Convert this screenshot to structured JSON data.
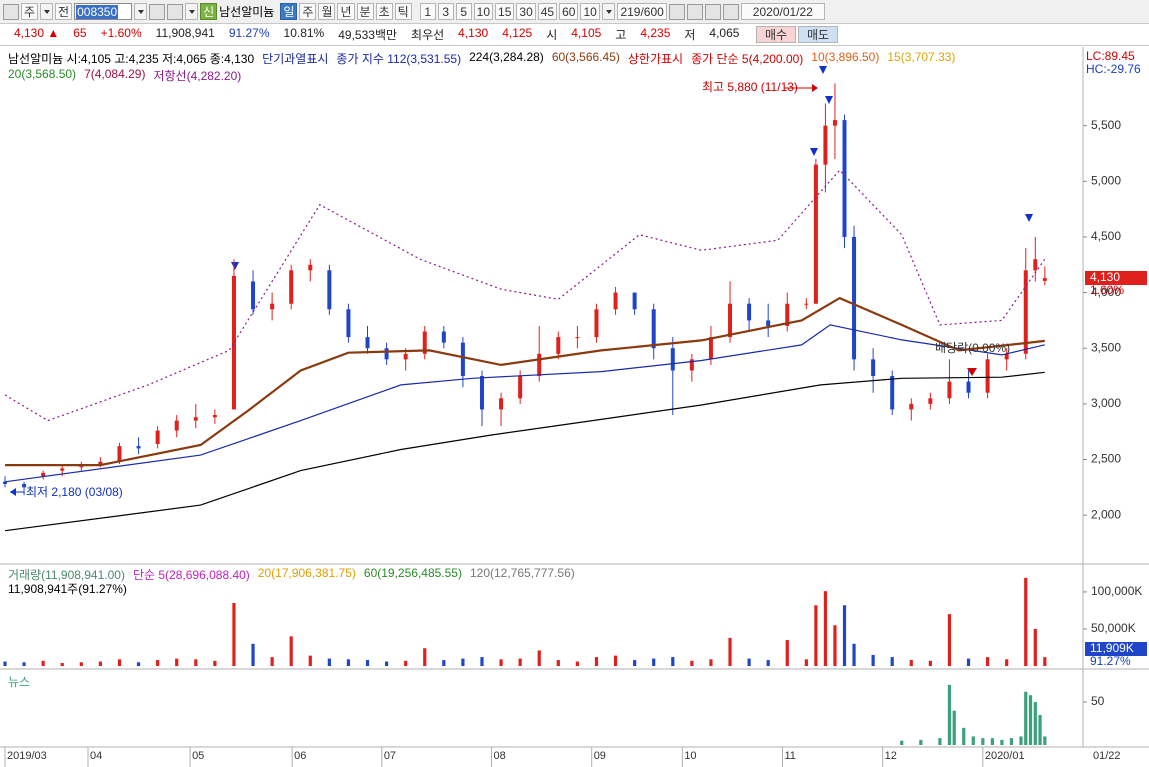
{
  "toolbar": {
    "market": "주",
    "mode": "전",
    "code": "008350",
    "badge": "신",
    "name": "남선알미늄",
    "periods": [
      "일",
      "주",
      "월",
      "년",
      "분",
      "초",
      "틱"
    ],
    "intervals": [
      "1",
      "3",
      "5",
      "10",
      "15",
      "30",
      "45",
      "60"
    ],
    "count_select": "10",
    "count": "219/600",
    "date": "2020/01/22"
  },
  "quote_bar": {
    "items": [
      {
        "text": "4,130 ▲",
        "color": "#d50000"
      },
      {
        "text": "65",
        "color": "#d50000"
      },
      {
        "text": "+1.60%",
        "color": "#d50000"
      },
      {
        "text": "11,908,941",
        "color": "#222222"
      },
      {
        "text": "91.27%",
        "color": "#1a3fbf"
      },
      {
        "text": "10.81%",
        "color": "#222222"
      },
      {
        "text": "49,533백만",
        "color": "#222222"
      },
      {
        "text": "최우선",
        "color": "#222222"
      },
      {
        "text": "4,130",
        "color": "#d50000"
      },
      {
        "text": "4,125",
        "color": "#d50000"
      },
      {
        "text": "시",
        "color": "#222222"
      },
      {
        "text": "4,105",
        "color": "#d50000"
      },
      {
        "text": "고",
        "color": "#222222"
      },
      {
        "text": "4,235",
        "color": "#d50000"
      },
      {
        "text": "저",
        "color": "#222222"
      },
      {
        "text": "4,065",
        "color": "#222222"
      }
    ],
    "buy": "매수",
    "sell": "매도"
  },
  "chart_data": [
    {
      "type": "candlestick",
      "header": "남선알미늄 시:4,105 고:4,235 저:4,065 종:4,130",
      "indicator_lc": "LC:89.45",
      "indicator_hc": "HC:-29.76",
      "last_value_label": "4,130",
      "last_change": "1.60%",
      "annotations": [
        {
          "text": "최고 5,880 (11/13)",
          "color": "#d00000"
        },
        {
          "text": "최저 2,180 (03/08)",
          "color": "#1030c0"
        },
        {
          "text": "배당락(0.00%)",
          "color": "#333333"
        }
      ],
      "up_color": "#e0201c",
      "down_color": "#1f46c8",
      "xlim": [
        0,
        226
      ],
      "ylim": [
        1570,
        6090
      ],
      "yticks": [
        {
          "value": 2000,
          "label": "2,000"
        },
        {
          "value": 2500,
          "label": "2,500"
        },
        {
          "value": 3000,
          "label": "3,000"
        },
        {
          "value": 3500,
          "label": "3,500"
        },
        {
          "value": 4000,
          "label": "4,000"
        },
        {
          "value": 4500,
          "label": "4,500"
        },
        {
          "value": 5000,
          "label": "5,000"
        },
        {
          "value": 5500,
          "label": "5,500"
        }
      ],
      "x": [
        0,
        4,
        8,
        12,
        16,
        20,
        24,
        28,
        32,
        36,
        40,
        44,
        48,
        52,
        56,
        60,
        64,
        68,
        72,
        76,
        80,
        84,
        88,
        92,
        96,
        100,
        104,
        108,
        112,
        116,
        120,
        124,
        128,
        132,
        136,
        140,
        144,
        148,
        152,
        156,
        160,
        164,
        168,
        170,
        172,
        174,
        176,
        178,
        182,
        186,
        190,
        194,
        198,
        202,
        206,
        210,
        214,
        216,
        218
      ],
      "open": [
        2300,
        2280,
        2350,
        2400,
        2430,
        2450,
        2480,
        2620,
        2640,
        2760,
        2850,
        2880,
        2950,
        4100,
        3850,
        3900,
        4200,
        4200,
        3850,
        3600,
        3500,
        3400,
        3450,
        3650,
        3550,
        3250,
        2950,
        3050,
        3250,
        3450,
        3600,
        3600,
        3850,
        4000,
        3850,
        3500,
        3300,
        3400,
        3600,
        3900,
        3750,
        3700,
        3900,
        3900,
        5150,
        5500,
        5550,
        4500,
        3400,
        3250,
        2950,
        3000,
        3050,
        3200,
        3100,
        3400,
        3450,
        4200,
        4105
      ],
      "high": [
        2350,
        2300,
        2400,
        2450,
        2480,
        2520,
        2650,
        2700,
        2800,
        2900,
        3000,
        2950,
        4300,
        4200,
        4000,
        4250,
        4300,
        4250,
        3900,
        3700,
        3550,
        3500,
        3700,
        3700,
        3600,
        3300,
        3100,
        3300,
        3700,
        3650,
        3700,
        3900,
        4050,
        4000,
        3900,
        3600,
        3450,
        3700,
        4100,
        3950,
        3900,
        4000,
        3950,
        5200,
        5700,
        5880,
        5600,
        4600,
        3500,
        3300,
        3050,
        3100,
        3400,
        3300,
        3450,
        3500,
        4400,
        4500,
        4235
      ],
      "low": [
        2250,
        2180,
        2320,
        2350,
        2400,
        2430,
        2460,
        2550,
        2600,
        2700,
        2780,
        2820,
        2950,
        3800,
        3750,
        3850,
        4100,
        3800,
        3550,
        3450,
        3350,
        3300,
        3400,
        3500,
        3150,
        2800,
        2800,
        3000,
        3200,
        3400,
        3500,
        3550,
        3800,
        3800,
        3400,
        2900,
        3200,
        3350,
        3550,
        3650,
        3600,
        3650,
        3850,
        3900,
        4900,
        5200,
        4400,
        3300,
        3100,
        2900,
        2850,
        2950,
        3000,
        3050,
        3050,
        3300,
        3400,
        4100,
        4065
      ],
      "close": [
        2280,
        2250,
        2380,
        2420,
        2450,
        2480,
        2620,
        2600,
        2760,
        2850,
        2880,
        2900,
        4150,
        3850,
        3900,
        4200,
        4250,
        3850,
        3600,
        3500,
        3400,
        3450,
        3650,
        3550,
        3250,
        2950,
        3050,
        3250,
        3450,
        3600,
        3600,
        3850,
        4000,
        3850,
        3500,
        3300,
        3400,
        3600,
        3900,
        3750,
        3700,
        3900,
        3900,
        5150,
        5500,
        5550,
        4500,
        3400,
        3250,
        2950,
        3000,
        3050,
        3200,
        3100,
        3400,
        3450,
        4200,
        4300,
        4130
      ],
      "legend_extra": [
        {
          "name": "단기과열표시",
          "color": "#1a2a9a"
        },
        {
          "name": "상한가표시",
          "color": "#d00000"
        },
        {
          "name": "종가 단순 5(4,200.00)",
          "color": "#d00000"
        },
        {
          "name": "10(3,896.50)",
          "color": "#e0601a"
        },
        {
          "name": "15(3,707.33)",
          "color": "#d8a800"
        },
        {
          "name": "20(3,568.50)",
          "color": "#2a8a2a"
        },
        {
          "name": "7(4,084.29)",
          "color": "#a01040"
        }
      ],
      "series": [
        {
          "name": "종가 지수 112(3,531.55)",
          "color": "#1a2aa8",
          "x": [
            0,
            41,
            62,
            83,
            98,
            125,
            146,
            167,
            173,
            188,
            209,
            218
          ],
          "values": [
            2300,
            2540,
            2850,
            3170,
            3230,
            3290,
            3390,
            3530,
            3710,
            3575,
            3440,
            3531
          ]
        },
        {
          "name": "224(3,284.28)",
          "color": "#000000",
          "x": [
            0,
            41,
            62,
            83,
            102,
            125,
            146,
            171,
            188,
            209,
            218
          ],
          "values": [
            1860,
            2090,
            2400,
            2590,
            2720,
            2860,
            2990,
            3170,
            3230,
            3240,
            3284
          ]
        },
        {
          "name": "60(3,566.45)",
          "color": "#8b3a0f",
          "x": [
            0,
            20,
            41,
            51,
            62,
            72,
            89,
            104,
            125,
            146,
            167,
            175,
            188,
            200,
            218
          ],
          "values": [
            2450,
            2450,
            2630,
            2940,
            3300,
            3460,
            3480,
            3350,
            3480,
            3570,
            3750,
            3950,
            3710,
            3480,
            3566
          ]
        },
        {
          "name": "저항선(4,282.20)",
          "color": "#8b1a8b",
          "dashed": true,
          "x": [
            0,
            9,
            30,
            47,
            66,
            87,
            104,
            116,
            133,
            146,
            162,
            175,
            188,
            196,
            209,
            218
          ],
          "values": [
            3080,
            2850,
            3170,
            3480,
            4790,
            4300,
            4030,
            3940,
            4520,
            4380,
            4470,
            5100,
            4520,
            3710,
            3750,
            4300
          ]
        }
      ]
    },
    {
      "type": "bar",
      "legend": [
        {
          "name": "거래량(11,908,941.00)",
          "color": "#4a8a6a"
        },
        {
          "name": "단순 5(28,696,088.40)",
          "color": "#c020c0"
        },
        {
          "name": "20(17,906,381.75)",
          "color": "#e0a000"
        },
        {
          "name": "60(19,256,485.55)",
          "color": "#2a8a2a"
        },
        {
          "name": "120(12,765,777.56)",
          "color": "#777777"
        }
      ],
      "subtitle": "11,908,941주(91.27%)",
      "last_value_label": "11,909K",
      "last_ratio": "91.27%",
      "xlim": [
        0,
        226
      ],
      "ylim": [
        0,
        135000
      ],
      "yticks": [
        {
          "value": 100000,
          "label": "100,000K"
        },
        {
          "value": 50000,
          "label": "50,000K"
        }
      ],
      "x": [
        0,
        4,
        8,
        12,
        16,
        20,
        24,
        28,
        32,
        36,
        40,
        44,
        48,
        52,
        56,
        60,
        64,
        68,
        72,
        76,
        80,
        84,
        88,
        92,
        96,
        100,
        104,
        108,
        112,
        116,
        120,
        124,
        128,
        132,
        136,
        140,
        144,
        148,
        152,
        156,
        160,
        164,
        168,
        170,
        172,
        174,
        176,
        178,
        182,
        186,
        190,
        194,
        198,
        202,
        206,
        210,
        214,
        216,
        218
      ],
      "values": [
        6000,
        5000,
        7000,
        4000,
        5000,
        6000,
        9000,
        5000,
        8000,
        10000,
        9000,
        7000,
        85000,
        30000,
        12000,
        40000,
        14000,
        10000,
        9000,
        8000,
        6000,
        7000,
        24000,
        8000,
        10000,
        12000,
        9000,
        10000,
        21000,
        8000,
        6000,
        12000,
        14000,
        8000,
        10000,
        12000,
        7000,
        9000,
        38000,
        10000,
        8000,
        35000,
        9000,
        82000,
        101000,
        55000,
        82000,
        30000,
        15000,
        12000,
        8000,
        7000,
        70000,
        10000,
        12000,
        9000,
        119000,
        50000,
        11909
      ]
    },
    {
      "type": "bar",
      "title": "뉴스",
      "color": "#3aa27a",
      "xlim": [
        0,
        226
      ],
      "ylim": [
        0,
        85
      ],
      "yticks": [
        50
      ],
      "xticks": [
        {
          "value": 0,
          "label": "2019/03"
        },
        {
          "value": 17.4,
          "label": "04"
        },
        {
          "value": 38.8,
          "label": "05"
        },
        {
          "value": 60.2,
          "label": "06"
        },
        {
          "value": 79,
          "label": "07"
        },
        {
          "value": 102,
          "label": "08"
        },
        {
          "value": 123,
          "label": "09"
        },
        {
          "value": 142,
          "label": "10"
        },
        {
          "value": 163,
          "label": "11"
        },
        {
          "value": 184,
          "label": "12"
        },
        {
          "value": 205,
          "label": "2020/01"
        }
      ],
      "x_axis_end_label": "01/22",
      "x": [
        188,
        192,
        196,
        198,
        199,
        201,
        203,
        205,
        207,
        209,
        211,
        213,
        214,
        215,
        216,
        217,
        218
      ],
      "values": [
        5,
        6,
        8,
        70,
        40,
        20,
        10,
        8,
        8,
        6,
        8,
        10,
        62,
        58,
        50,
        35,
        10
      ]
    }
  ]
}
